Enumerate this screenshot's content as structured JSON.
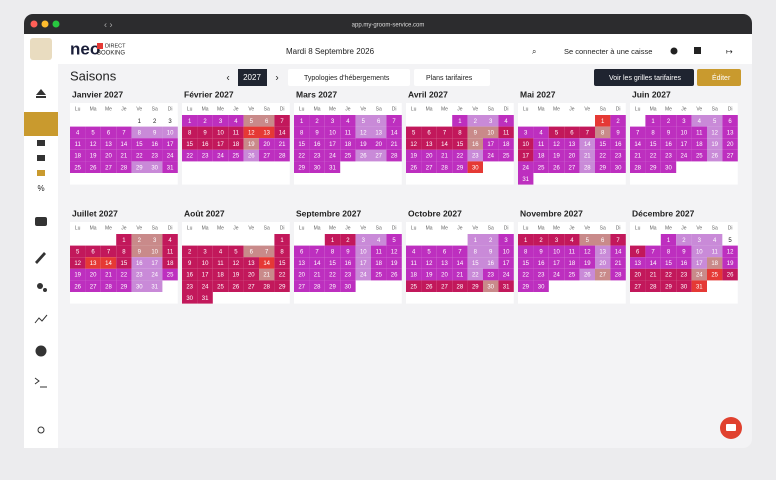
{
  "browser": {
    "url": "app.my-groom-service.com"
  },
  "header": {
    "logo": "neo",
    "logo_tag_1": "DIRECT",
    "logo_tag_2": "BOOKING",
    "date": "Mardi 8 Septembre 2026",
    "cash_register": "Se connecter à une caisse"
  },
  "toolbar": {
    "title": "Saisons",
    "year": "2027",
    "filter_1": "Typologies d'hébergements",
    "filter_2": "Plans tarifaires",
    "rates_button": "Voir les grilles tarifaires",
    "edit_button": "Éditer"
  },
  "calendar": {
    "weekdays": [
      "Lu",
      "Ma",
      "Me",
      "Je",
      "Ve",
      "Sa",
      "Di"
    ],
    "tone_colors": {
      "M": "#bd2fbf",
      "P": "#c2185b",
      "L": "#c98ad8",
      "S": "#c98a8a",
      "R": "#e53935",
      "W": "#ffffff"
    },
    "months": [
      {
        "name": "Janvier 2027",
        "weeks": [
          [
            null,
            null,
            null,
            null,
            1,
            2,
            3
          ],
          [
            4,
            5,
            6,
            7,
            8,
            9,
            10
          ],
          [
            11,
            12,
            13,
            14,
            15,
            16,
            17
          ],
          [
            18,
            19,
            20,
            21,
            22,
            23,
            24
          ],
          [
            25,
            26,
            27,
            28,
            29,
            30,
            31
          ]
        ],
        "tones": [
          "....WWW",
          "MMMMLLL",
          "MMMMMMM",
          "MMMMMMM",
          "MMMMLLM"
        ]
      },
      {
        "name": "Février 2027",
        "weeks": [
          [
            1,
            2,
            3,
            4,
            5,
            6,
            7
          ],
          [
            8,
            9,
            10,
            11,
            12,
            13,
            14
          ],
          [
            15,
            16,
            17,
            18,
            19,
            20,
            21
          ],
          [
            22,
            23,
            24,
            25,
            26,
            27,
            28
          ]
        ],
        "tones": [
          "MMMMSSP",
          "PPPPRRP",
          "PPPPSMM",
          "MMMMLMM"
        ]
      },
      {
        "name": "Mars 2027",
        "weeks": [
          [
            1,
            2,
            3,
            4,
            5,
            6,
            7
          ],
          [
            8,
            9,
            10,
            11,
            12,
            13,
            14
          ],
          [
            15,
            16,
            17,
            18,
            19,
            20,
            21
          ],
          [
            22,
            23,
            24,
            25,
            26,
            27,
            28
          ],
          [
            29,
            30,
            31,
            null,
            null,
            null,
            null
          ]
        ],
        "tones": [
          "MMMMLLM",
          "MMMMLLM",
          "MMMMMMM",
          "MMMMLLM",
          "MMM...."
        ]
      },
      {
        "name": "Avril 2027",
        "weeks": [
          [
            null,
            null,
            null,
            1,
            2,
            3,
            4
          ],
          [
            5,
            6,
            7,
            8,
            9,
            10,
            11
          ],
          [
            12,
            13,
            14,
            15,
            16,
            17,
            18
          ],
          [
            19,
            20,
            21,
            22,
            23,
            24,
            25
          ],
          [
            26,
            27,
            28,
            29,
            30,
            null,
            null
          ]
        ],
        "tones": [
          "...MLLM",
          "PPPPSSP",
          "PPPPSMM",
          "MMMMLMM",
          "MMMMR.."
        ]
      },
      {
        "name": "Mai 2027",
        "weeks": [
          [
            null,
            null,
            null,
            null,
            null,
            1,
            2
          ],
          [
            3,
            4,
            5,
            6,
            7,
            8,
            9
          ],
          [
            10,
            11,
            12,
            13,
            14,
            15,
            16
          ],
          [
            17,
            18,
            19,
            20,
            21,
            22,
            23
          ],
          [
            24,
            25,
            26,
            27,
            28,
            29,
            30
          ],
          [
            31,
            null,
            null,
            null,
            null,
            null,
            null
          ]
        ],
        "tones": [
          ".....RM",
          "MMPPPSM",
          "PMMMLMM",
          "PMMMLMM",
          "MMMMLMM",
          "M......"
        ]
      },
      {
        "name": "Juin 2027",
        "weeks": [
          [
            null,
            1,
            2,
            3,
            4,
            5,
            6
          ],
          [
            7,
            8,
            9,
            10,
            11,
            12,
            13
          ],
          [
            14,
            15,
            16,
            17,
            18,
            19,
            20
          ],
          [
            21,
            22,
            23,
            24,
            25,
            26,
            27
          ],
          [
            28,
            29,
            30,
            null,
            null,
            null,
            null
          ]
        ],
        "tones": [
          ".MMMLLM",
          "MMMMMLM",
          "MMMMMLM",
          "MMMMMLM",
          "MMM...."
        ]
      },
      {
        "name": "Juillet 2027",
        "weeks": [
          [
            null,
            null,
            null,
            1,
            2,
            3,
            4
          ],
          [
            5,
            6,
            7,
            8,
            9,
            10,
            11
          ],
          [
            12,
            13,
            14,
            15,
            16,
            17,
            18
          ],
          [
            19,
            20,
            21,
            22,
            23,
            24,
            25
          ],
          [
            26,
            27,
            28,
            29,
            30,
            31,
            null
          ]
        ],
        "tones": [
          "...PSSP",
          "PPPPSSP",
          "PRRPLLP",
          "MMMMLLM",
          "MMMMLL."
        ]
      },
      {
        "name": "Août 2027",
        "weeks": [
          [
            null,
            null,
            null,
            null,
            null,
            null,
            1
          ],
          [
            2,
            3,
            4,
            5,
            6,
            7,
            8
          ],
          [
            9,
            10,
            11,
            12,
            13,
            14,
            15
          ],
          [
            16,
            17,
            18,
            19,
            20,
            21,
            22
          ],
          [
            23,
            24,
            25,
            26,
            27,
            28,
            29
          ],
          [
            30,
            31,
            null,
            null,
            null,
            null,
            null
          ]
        ],
        "tones": [
          "......P",
          "PPPPSSP",
          "PPPPPRP",
          "PPPPPSP",
          "PPPPPPP",
          "PP....."
        ]
      },
      {
        "name": "Septembre 2027",
        "weeks": [
          [
            null,
            null,
            1,
            2,
            3,
            4,
            5
          ],
          [
            6,
            7,
            8,
            9,
            10,
            11,
            12
          ],
          [
            13,
            14,
            15,
            16,
            17,
            18,
            19
          ],
          [
            20,
            21,
            22,
            23,
            24,
            25,
            26
          ],
          [
            27,
            28,
            29,
            30,
            null,
            null,
            null
          ]
        ],
        "tones": [
          "..PPLLM",
          "MMMMLMM",
          "MMMMLMM",
          "MMMMLMM",
          "MMMM..."
        ]
      },
      {
        "name": "Octobre 2027",
        "weeks": [
          [
            null,
            null,
            null,
            null,
            1,
            2,
            3
          ],
          [
            4,
            5,
            6,
            7,
            8,
            9,
            10
          ],
          [
            11,
            12,
            13,
            14,
            15,
            16,
            17
          ],
          [
            18,
            19,
            20,
            21,
            22,
            23,
            24
          ],
          [
            25,
            26,
            27,
            28,
            29,
            30,
            31
          ]
        ],
        "tones": [
          "....LLM",
          "MMMMLLM",
          "MMMMLLM",
          "MMMMLMM",
          "PPPPPSP"
        ]
      },
      {
        "name": "Novembre 2027",
        "weeks": [
          [
            1,
            2,
            3,
            4,
            5,
            6,
            7
          ],
          [
            8,
            9,
            10,
            11,
            12,
            13,
            14
          ],
          [
            15,
            16,
            17,
            18,
            19,
            20,
            21
          ],
          [
            22,
            23,
            24,
            25,
            26,
            27,
            28
          ],
          [
            29,
            30,
            null,
            null,
            null,
            null,
            null
          ]
        ],
        "tones": [
          "PPPPSSP",
          "MMMMMLM",
          "MMMMMLM",
          "MMMMLSM",
          "MM....."
        ]
      },
      {
        "name": "Décembre 2027",
        "weeks": [
          [
            null,
            null,
            1,
            2,
            3,
            4,
            5
          ],
          [
            6,
            7,
            8,
            9,
            10,
            11,
            12
          ],
          [
            13,
            14,
            15,
            16,
            17,
            18,
            19
          ],
          [
            20,
            21,
            22,
            23,
            24,
            25,
            26
          ],
          [
            27,
            28,
            29,
            30,
            31,
            null,
            null
          ]
        ],
        "tones": [
          "..MLLLW",
          "PMMMLLM",
          "MMMMLSM",
          "PPPPSRP",
          "PPPPR.."
        ]
      }
    ]
  }
}
